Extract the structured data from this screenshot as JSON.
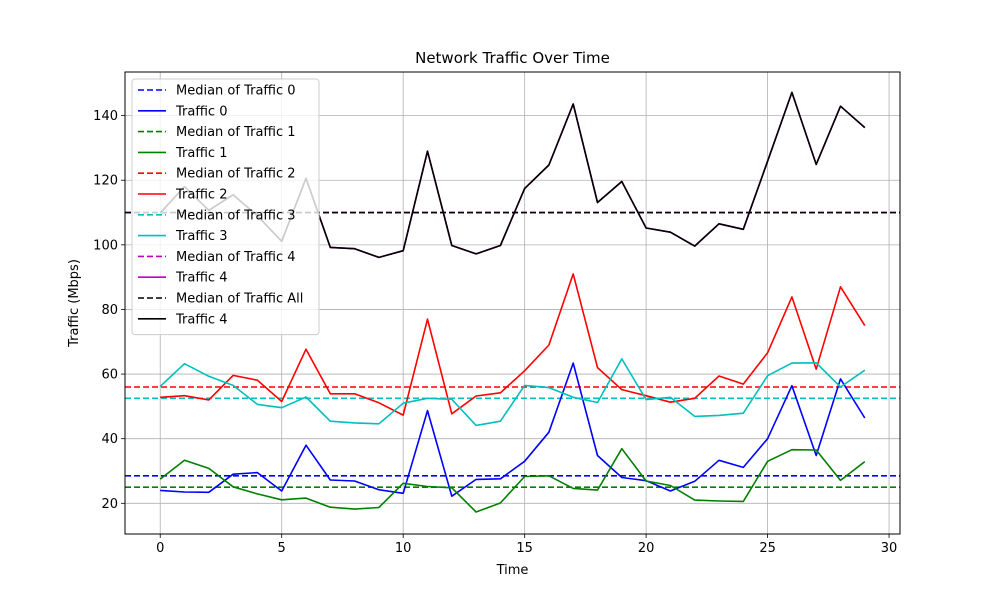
{
  "chart_data": {
    "type": "line",
    "title": "Network Traffic Over Time",
    "xlabel": "Time",
    "ylabel": "Traffic (Mbps)",
    "xlim": [
      -1.45,
      30.45
    ],
    "ylim": [
      10.5,
      153.5
    ],
    "xticks": [
      0,
      5,
      10,
      15,
      20,
      25,
      30
    ],
    "yticks": [
      20,
      40,
      60,
      80,
      100,
      120,
      140
    ],
    "grid": true,
    "legend_position": "upper-left",
    "x": [
      0,
      1,
      2,
      3,
      4,
      5,
      6,
      7,
      8,
      9,
      10,
      11,
      12,
      13,
      14,
      15,
      16,
      17,
      18,
      19,
      20,
      21,
      22,
      23,
      24,
      25,
      26,
      27,
      28,
      29
    ],
    "series": [
      {
        "name": "Traffic 0",
        "color": "#0000ff",
        "values": [
          24.0,
          23.5,
          23.4,
          29.0,
          29.5,
          23.8,
          38.0,
          27.2,
          26.9,
          24.2,
          23.1,
          48.7,
          22.2,
          27.4,
          27.6,
          33.0,
          42.0,
          63.4,
          34.8,
          28.0,
          27.0,
          23.8,
          26.8,
          33.3,
          31.1,
          40.0,
          56.4,
          34.8,
          58.5,
          46.4
        ]
      },
      {
        "name": "Traffic 1",
        "color": "#008000",
        "values": [
          27.5,
          33.3,
          30.8,
          25.1,
          22.9,
          21.1,
          21.6,
          18.8,
          18.2,
          18.7,
          26.2,
          25.2,
          24.8,
          17.3,
          20.1,
          28.3,
          28.5,
          24.6,
          24.1,
          36.9,
          26.9,
          25.5,
          21.0,
          20.7,
          20.6,
          33.0,
          36.6,
          36.5,
          27.1,
          32.9
        ]
      },
      {
        "name": "Traffic 2",
        "color": "#ff0000",
        "values": [
          52.8,
          53.3,
          52.0,
          59.6,
          58.1,
          51.5,
          67.7,
          53.9,
          53.9,
          51.1,
          47.3,
          77.0,
          47.7,
          53.2,
          54.2,
          61.0,
          69.0,
          91.0,
          62.0,
          55.2,
          53.3,
          51.3,
          52.5,
          59.4,
          56.9,
          66.6,
          83.9,
          61.5,
          87.0,
          75.0
        ]
      },
      {
        "name": "Traffic 3",
        "color": "#00bfbf",
        "values": [
          56.2,
          63.2,
          59.3,
          56.5,
          50.6,
          49.6,
          52.9,
          45.4,
          44.9,
          44.6,
          51.0,
          52.5,
          52.2,
          44.1,
          45.4,
          56.5,
          55.8,
          52.8,
          51.2,
          64.7,
          52.1,
          52.8,
          46.9,
          47.2,
          47.9,
          59.5,
          63.4,
          63.5,
          56.0,
          61.2
        ]
      },
      {
        "name": "Traffic 4",
        "color": "#bf00bf",
        "values": [
          109.9,
          118.0,
          110.7,
          115.5,
          109.0,
          101.1,
          120.6,
          99.2,
          98.8,
          96.1,
          98.2,
          129.0,
          99.8,
          97.2,
          99.8,
          117.4,
          124.7,
          143.6,
          113.1,
          119.6,
          105.2,
          103.9,
          99.6,
          106.5,
          104.8,
          125.9,
          147.2,
          124.9,
          142.9,
          136.3
        ]
      },
      {
        "name": "Traffic 4",
        "color": "#000000",
        "values": [
          109.9,
          118.0,
          110.7,
          115.5,
          109.0,
          101.1,
          120.6,
          99.2,
          98.8,
          96.1,
          98.2,
          129.0,
          99.8,
          97.2,
          99.8,
          117.4,
          124.7,
          143.6,
          113.1,
          119.6,
          105.2,
          103.9,
          99.6,
          106.5,
          104.8,
          125.9,
          147.2,
          124.9,
          142.9,
          136.3
        ]
      }
    ],
    "medians": [
      {
        "name": "Median of Traffic 0",
        "color": "#0000ff",
        "value": 28.5
      },
      {
        "name": "Median of Traffic 1",
        "color": "#008000",
        "value": 25.0
      },
      {
        "name": "Median of Traffic 2",
        "color": "#ff0000",
        "value": 56.0
      },
      {
        "name": "Median of Traffic 3",
        "color": "#00bfbf",
        "value": 52.5
      },
      {
        "name": "Median of Traffic 4",
        "color": "#bf00bf",
        "value": 110.0
      },
      {
        "name": "Median of Traffic All",
        "color": "#000000",
        "value": 110.0
      }
    ],
    "legend": [
      {
        "label": "Median of Traffic 0",
        "color": "#0000ff",
        "style": "dashed"
      },
      {
        "label": "Traffic 0",
        "color": "#0000ff",
        "style": "solid"
      },
      {
        "label": "Median of Traffic 1",
        "color": "#008000",
        "style": "dashed"
      },
      {
        "label": "Traffic 1",
        "color": "#008000",
        "style": "solid"
      },
      {
        "label": "Median of Traffic 2",
        "color": "#ff0000",
        "style": "dashed"
      },
      {
        "label": "Traffic 2",
        "color": "#ff0000",
        "style": "solid"
      },
      {
        "label": "Median of Traffic 3",
        "color": "#00bfbf",
        "style": "dashed"
      },
      {
        "label": "Traffic 3",
        "color": "#00bfbf",
        "style": "solid"
      },
      {
        "label": "Median of Traffic 4",
        "color": "#bf00bf",
        "style": "dashed"
      },
      {
        "label": "Traffic 4",
        "color": "#bf00bf",
        "style": "solid"
      },
      {
        "label": "Median of Traffic All",
        "color": "#000000",
        "style": "dashed"
      },
      {
        "label": "Traffic 4",
        "color": "#000000",
        "style": "solid"
      }
    ]
  }
}
